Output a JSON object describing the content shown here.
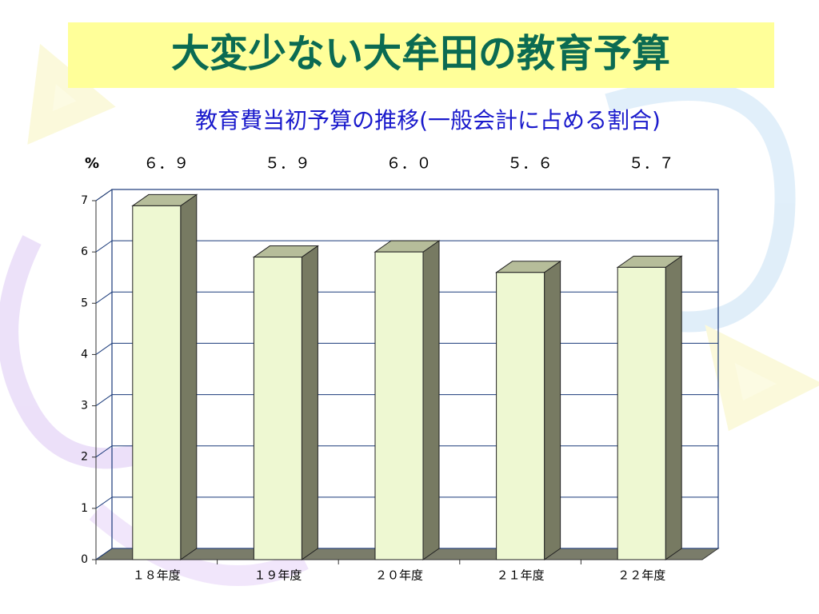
{
  "chart_data": {
    "type": "bar3d",
    "title": "大変少ない大牟田の教育予算",
    "subtitle": "教育費当初予算の推移(一般会計に占める割合)",
    "y_unit": "%",
    "categories": [
      "１８年度",
      "１９年度",
      "２０年度",
      "２１年度",
      "２２年度"
    ],
    "values": [
      6.9,
      5.9,
      6.0,
      5.6,
      5.7
    ],
    "value_labels": [
      "６．９",
      "５．９",
      "６．０",
      "５．６",
      "５．７"
    ],
    "ylim": [
      0,
      7
    ],
    "yticks": [
      0,
      1,
      2,
      3,
      4,
      5,
      6,
      7
    ],
    "grid": true,
    "color": "#eef8d2"
  }
}
